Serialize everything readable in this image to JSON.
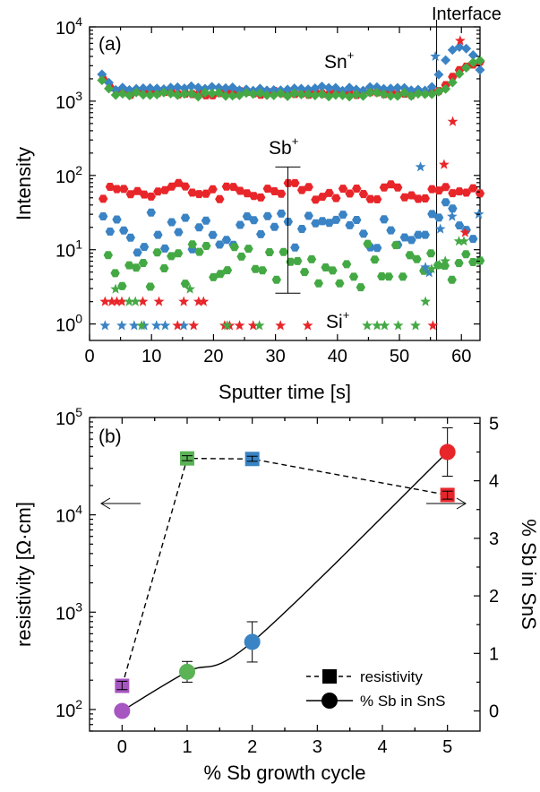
{
  "chart_data": [
    {
      "type": "scatter",
      "panel_label": "(a)",
      "xlabel": "Sputter time [s]",
      "ylabel": "Intensity",
      "xlim": [
        0,
        63
      ],
      "ylim": [
        0.6,
        10000
      ],
      "yscale": "log",
      "x_ticks": [
        "0",
        "10",
        "20",
        "30",
        "40",
        "50",
        "60"
      ],
      "y_ticks": [
        {
          "base": "10",
          "exp": "0"
        },
        {
          "base": "10",
          "exp": "1"
        },
        {
          "base": "10",
          "exp": "2"
        },
        {
          "base": "10",
          "exp": "3"
        },
        {
          "base": "10",
          "exp": "4"
        }
      ],
      "annotations": {
        "interface": "Interface",
        "interface_x": 56,
        "sn": {
          "base": "Sn",
          "sup": "+"
        },
        "sb": {
          "base": "Sb",
          "sup": "+"
        },
        "si": {
          "base": "Si",
          "sup": "+"
        },
        "sb_errorbar": {
          "x": 32,
          "low": 2.6,
          "high": 130
        }
      },
      "colors": {
        "red": "#e8262a",
        "blue": "#3a83c4",
        "green": "#44a944"
      },
      "series": [
        {
          "color": "red",
          "species": "Sn",
          "marker": "hexagon",
          "x_start": 2.2,
          "x_end": 63,
          "n": 56,
          "base": 1280,
          "noise": 0.03,
          "seed": 1,
          "tail": [
            [
              55,
              1300
            ],
            [
              56,
              1330
            ],
            [
              57,
              1500
            ],
            [
              58,
              1900
            ],
            [
              59,
              2300
            ],
            [
              60,
              2700
            ],
            [
              61,
              2900
            ],
            [
              62,
              3100
            ],
            [
              63,
              3300
            ]
          ]
        },
        {
          "color": "blue",
          "species": "Sn",
          "marker": "diamond",
          "x_start": 2,
          "x_end": 63,
          "n": 56,
          "base": 1480,
          "noise": 0.03,
          "seed": 2,
          "tail": [
            [
              55,
              1500
            ],
            [
              56,
              2000
            ],
            [
              57,
              3200
            ],
            [
              58,
              4300
            ],
            [
              59,
              5200
            ],
            [
              60,
              5500
            ],
            [
              61,
              5100
            ],
            [
              62,
              4000
            ],
            [
              63,
              2600
            ]
          ]
        },
        {
          "color": "green",
          "species": "Sn",
          "marker": "diamond",
          "x_start": 2,
          "x_end": 63,
          "n": 56,
          "base": 1230,
          "noise": 0.03,
          "seed": 3,
          "tail": [
            [
              55,
              1250
            ],
            [
              56,
              1280
            ],
            [
              57,
              1400
            ],
            [
              58,
              1650
            ],
            [
              59,
              2000
            ],
            [
              60,
              2400
            ],
            [
              61,
              2900
            ],
            [
              62,
              3300
            ],
            [
              63,
              3500
            ]
          ]
        },
        {
          "color": "red",
          "species": "Sb",
          "marker": "hexagon",
          "x_start": 2.2,
          "x_end": 63,
          "n": 56,
          "base": 62,
          "noise": 0.12,
          "seed": 4,
          "tail": [
            [
              57,
              60
            ],
            [
              58,
              64
            ],
            [
              59,
              58
            ],
            [
              60,
              62
            ],
            [
              61,
              66
            ],
            [
              62,
              60
            ],
            [
              63,
              58
            ]
          ]
        },
        {
          "color": "blue",
          "species": "Sb",
          "marker": "hexagon",
          "x_start": 2.2,
          "x_end": 63,
          "n": 56,
          "base": 17,
          "noise": 0.28,
          "seed": 5,
          "tail": [
            [
              54,
              14
            ],
            [
              55,
              22
            ],
            [
              56,
              30
            ],
            [
              57,
              34
            ],
            [
              58,
              36
            ],
            [
              59,
              32
            ],
            [
              60,
              26
            ],
            [
              61,
              16
            ],
            [
              62,
              10
            ],
            [
              63,
              8
            ]
          ]
        },
        {
          "color": "green",
          "species": "Sb",
          "marker": "hexagon",
          "x_start": 3,
          "x_end": 63,
          "n": 54,
          "base": 6.2,
          "noise": 0.3,
          "seed": 6,
          "tail": [
            [
              53,
              7
            ],
            [
              54,
              5.5
            ],
            [
              55,
              7
            ],
            [
              56,
              8
            ],
            [
              57,
              9
            ],
            [
              58,
              6
            ],
            [
              59,
              5
            ],
            [
              60,
              6
            ],
            [
              61,
              7
            ],
            [
              62,
              6
            ],
            [
              63,
              10
            ]
          ]
        }
      ],
      "star_points": [
        {
          "color": "blue",
          "pts": [
            [
              2.5,
              0.95
            ],
            [
              5.2,
              0.95
            ],
            [
              7.2,
              0.95
            ],
            [
              8.8,
              0.95
            ],
            [
              10.8,
              0.95
            ],
            [
              12.2,
              0.95
            ],
            [
              15.2,
              0.95
            ],
            [
              53.4,
              130
            ],
            [
              54.2,
              5.8
            ],
            [
              54.8,
              4.9
            ],
            [
              55.8,
              4000
            ],
            [
              56.6,
              19
            ],
            [
              58.5,
              28
            ],
            [
              62.8,
              30
            ]
          ]
        },
        {
          "color": "red",
          "pts": [
            [
              2.5,
              2.0
            ],
            [
              3.6,
              2.0
            ],
            [
              4.4,
              2.0
            ],
            [
              5.2,
              2.0
            ],
            [
              8.6,
              2.0
            ],
            [
              11.2,
              2.0
            ],
            [
              14.2,
              0.95
            ],
            [
              15.2,
              2.0
            ],
            [
              16.8,
              0.95
            ],
            [
              17.6,
              2.0
            ],
            [
              18.4,
              2.0
            ],
            [
              21.8,
              0.95
            ],
            [
              22.6,
              0.95
            ],
            [
              24.2,
              0.95
            ],
            [
              26.4,
              0.95
            ],
            [
              30.8,
              0.95
            ],
            [
              35.2,
              0.95
            ],
            [
              55.4,
              0.95
            ],
            [
              57.2,
              140
            ],
            [
              58.6,
              530
            ],
            [
              59.8,
              6500
            ],
            [
              60.6,
              17
            ]
          ]
        },
        {
          "color": "green",
          "pts": [
            [
              4.2,
              2.95
            ],
            [
              6.4,
              2.0
            ],
            [
              7.4,
              2.0
            ],
            [
              8.4,
              0.95
            ],
            [
              16.2,
              2.95
            ],
            [
              22.2,
              0.95
            ],
            [
              27.4,
              0.95
            ],
            [
              44.8,
              0.95
            ],
            [
              46.4,
              0.95
            ],
            [
              47.6,
              0.95
            ],
            [
              49.8,
              0.95
            ],
            [
              52.6,
              0.95
            ],
            [
              54.2,
              2.0
            ],
            [
              55.2,
              5.5
            ],
            [
              56.4,
              6.2
            ],
            [
              57.4,
              7
            ],
            [
              59.6,
              13
            ],
            [
              60.4,
              13
            ]
          ]
        }
      ]
    },
    {
      "type": "scatter",
      "panel_label": "(b)",
      "xlabel": "% Sb growth cycle",
      "ylabel": "resistivity [Ω·cm]",
      "y2label": "% Sb in SnS",
      "x_categories": [
        "0",
        "1",
        "2",
        "3",
        "4",
        "5"
      ],
      "xlim": [
        -0.5,
        5.5
      ],
      "ylim": [
        60,
        100000
      ],
      "yscale": "log",
      "y2lim": [
        -0.35,
        5.1
      ],
      "y_ticks": [
        {
          "base": "10",
          "exp": "2"
        },
        {
          "base": "10",
          "exp": "3"
        },
        {
          "base": "10",
          "exp": "4"
        },
        {
          "base": "10",
          "exp": "5"
        }
      ],
      "y2_ticks": [
        "0",
        "1",
        "2",
        "3",
        "4",
        "5"
      ],
      "colors": {
        "c0": "#a755c1",
        "c1": "#5bb356",
        "c2": "#3a83c4",
        "c5": "#e8262a"
      },
      "resistivity": [
        {
          "x": 0,
          "y": 175,
          "err_low": 160,
          "err_high": 195,
          "color": "c0"
        },
        {
          "x": 1,
          "y": 38000,
          "err_low": 36000,
          "err_high": 40500,
          "color": "c1"
        },
        {
          "x": 2,
          "y": 37500,
          "err_low": 35500,
          "err_high": 40000,
          "color": "c2"
        },
        {
          "x": 5,
          "y": 16000,
          "err_low": 14500,
          "err_high": 17500,
          "color": "c5"
        }
      ],
      "sb_percent": [
        {
          "x": 0,
          "y": 0,
          "err": 0,
          "color": "c0"
        },
        {
          "x": 1,
          "y": 0.68,
          "err": 0.18,
          "color": "c1"
        },
        {
          "x": 2,
          "y": 1.2,
          "err": 0.35,
          "color": "c2"
        },
        {
          "x": 5,
          "y": 4.5,
          "err": 0.42,
          "color": "c5"
        }
      ],
      "legend": {
        "resistivity": "resistivity",
        "sb": "% Sb in SnS"
      }
    }
  ]
}
